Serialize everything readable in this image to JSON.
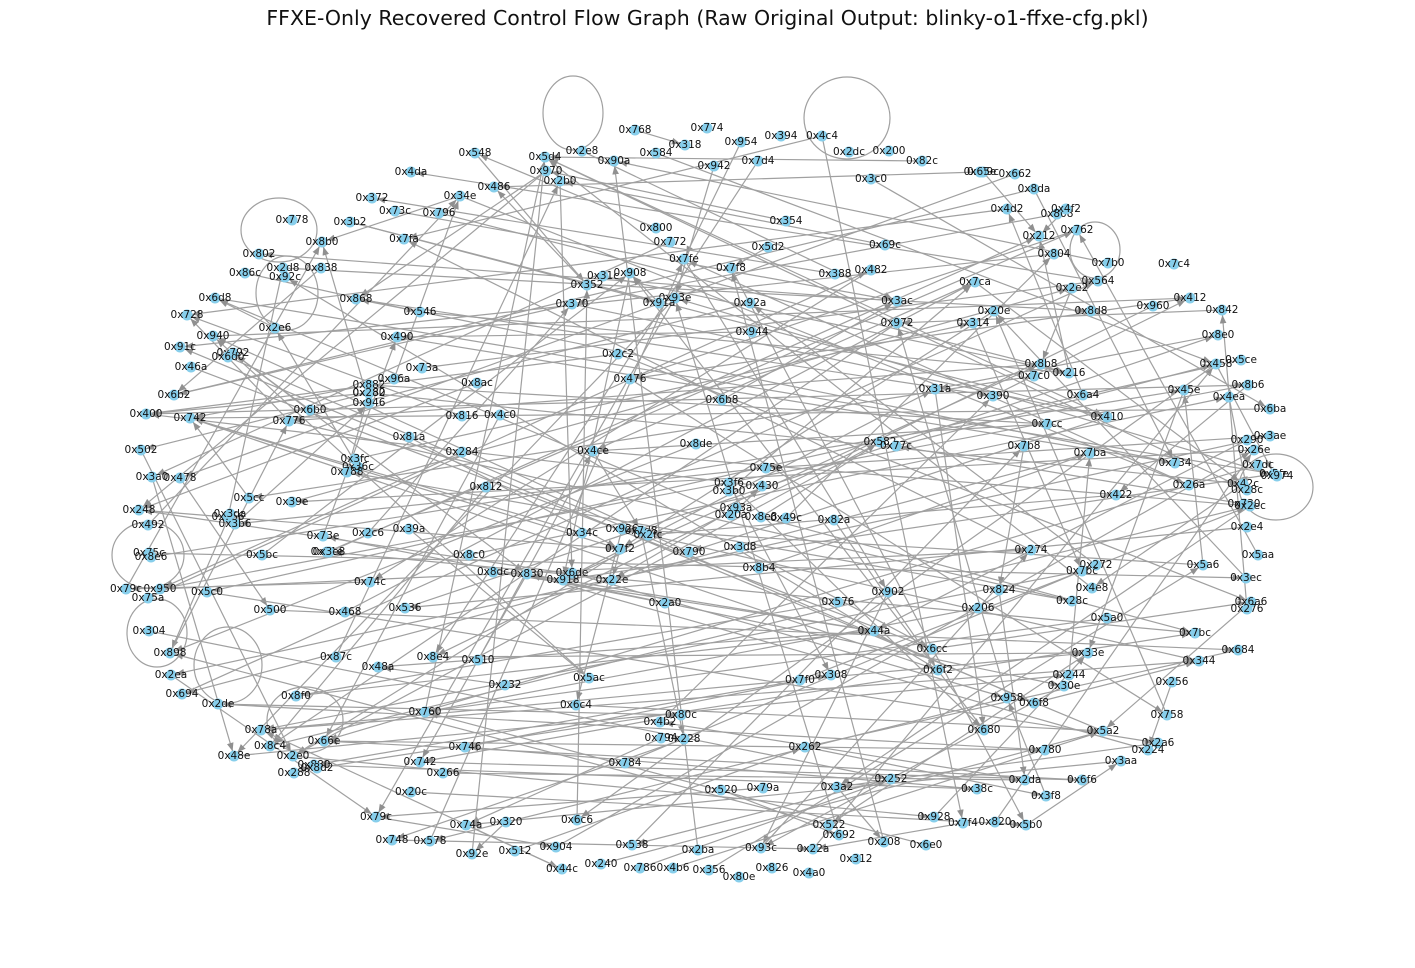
{
  "title": "FFXE-Only Recovered Control Flow Graph (Raw Original Output: blinky-o1-ffxe-cfg.pkl)",
  "colors": {
    "node": "#87ceeb",
    "edge": "#a0a0a0"
  },
  "nodes": [
    "0x768",
    "0x774",
    "0x954",
    "0x394",
    "0x4c4",
    "0x2e8",
    "0x318",
    "0x7d4",
    "0x2dc",
    "0x200",
    "0x548",
    "0x90a",
    "0x584",
    "0x942",
    "0x82c",
    "0x4da",
    "0x970",
    "0x5d4",
    "0x3c0",
    "0x69c",
    "0x65e",
    "0x662",
    "0x2b0",
    "0x486",
    "0x8da",
    "0x372",
    "0x73c",
    "0x34e",
    "0x796",
    "0x4d2",
    "0x808",
    "0x4f2",
    "0x778",
    "0x3b2",
    "0x800",
    "0x354",
    "0x8b0",
    "0x7fa",
    "0x772",
    "0x5d2",
    "0x69c2",
    "0x212",
    "0x762",
    "0x802",
    "0x2d8",
    "0x92c",
    "0x838",
    "0x7fe",
    "0x7f8",
    "0x804",
    "0x86c",
    "0x31c",
    "0x908",
    "0x388",
    "0x482",
    "0x2e2",
    "0x7ca",
    "0x564",
    "0x7b0",
    "0x7c4",
    "0x352",
    "0x868",
    "0x93e",
    "0x6d8",
    "0x546",
    "0x370",
    "0x91a",
    "0x92a",
    "0x3ac",
    "0x412",
    "0x960",
    "0x728",
    "0x20e",
    "0x8d8",
    "0x842",
    "0x314",
    "0x972",
    "0x2e6",
    "0x940",
    "0x944",
    "0x8e0",
    "0x490",
    "0x91c",
    "0x792",
    "0x6d0",
    "0x2c2",
    "0x5ce",
    "0x458",
    "0x8b8",
    "0x7c0",
    "0x46a",
    "0x73a",
    "0x216",
    "0x476",
    "0x882",
    "0x96a",
    "0x8ac",
    "0x8b6",
    "0x862",
    "0x6b2",
    "0x280",
    "0x946",
    "0x31a",
    "0x390",
    "0x45e",
    "0x4ea",
    "0x6a4",
    "0x6b8",
    "0x6ba",
    "0x6b0",
    "0x400",
    "0x742",
    "0x776",
    "0x410",
    "0x816",
    "0x4c0",
    "0x81a",
    "0x7cc",
    "0x3ae",
    "0x290",
    "0x26e",
    "0x7dc",
    "0x36c",
    "0x3fc",
    "0x582",
    "0x77c",
    "0x7b8",
    "0x8de",
    "0x502",
    "0x284",
    "0x4ce",
    "0x7ba",
    "0x734",
    "0x42c",
    "0x5fe",
    "0x974",
    "0x3a0",
    "0x478",
    "0x788",
    "0x812",
    "0x75e",
    "0x3f6",
    "0x430",
    "0x3b0",
    "0x26a",
    "0x28c",
    "0x422",
    "0x5cc",
    "0x93a",
    "0x20a",
    "0x8e8",
    "0x49c",
    "0x730",
    "0x2ec",
    "0x39e",
    "0x2e4",
    "0x248",
    "0x766",
    "0x3da",
    "0x82a",
    "0x492",
    "0x3b6",
    "0x926",
    "0x7d8",
    "0x39a",
    "0x2c6",
    "0x73e",
    "0x34c",
    "0x2fc",
    "0x81e",
    "0x75c",
    "0x8e6",
    "0x5bc",
    "0x7f2",
    "0x3e8",
    "0x8c0",
    "0x790",
    "0x3d8",
    "0x274",
    "0x272",
    "0x7bc2",
    "0x5a6",
    "0x5aa",
    "0x8dc",
    "0x830",
    "0x6de",
    "0x8b4",
    "0x3ec",
    "0x79c",
    "0x950",
    "0x75a",
    "0x5c0",
    "0x74c",
    "0x918",
    "0x22e",
    "0x4e8",
    "0x6a6",
    "0x500",
    "0x468",
    "0x536",
    "0x2a0",
    "0x576",
    "0x902",
    "0x206",
    "0x824",
    "0x28c2",
    "0x5a0",
    "0x276",
    "0x304",
    "0x898",
    "0x44a",
    "0x6cc",
    "0x7bc",
    "0x684",
    "0x87c",
    "0x48a",
    "0x8e4",
    "0x510",
    "0x33e",
    "0x344",
    "0x6f2",
    "0x2ea",
    "0x694",
    "0x2de",
    "0x7f0",
    "0x308",
    "0x244",
    "0x30e",
    "0x232",
    "0x5ac",
    "0x256",
    "0x8f0",
    "0x958",
    "0x6f8",
    "0x760",
    "0x6c4",
    "0x4b2",
    "0x80c",
    "0x758",
    "0x794",
    "0x228",
    "0x5a2",
    "0x2a6",
    "0x78a",
    "0x8c4",
    "0x66e",
    "0x746",
    "0x262",
    "0x680",
    "0x224",
    "0x48e",
    "0x2e0",
    "0x880",
    "0x742b",
    "0x8d2",
    "0x266",
    "0x784",
    "0x780",
    "0x3aa",
    "0x6f6",
    "0x288",
    "0x252",
    "0x2da",
    "0x20c",
    "0x520",
    "0x79a",
    "0x3a2",
    "0x38c",
    "0x3f8",
    "0x79c2",
    "0x74a",
    "0x320",
    "0x6c6",
    "0x928",
    "0x7f4",
    "0x820",
    "0x5b0",
    "0x522",
    "0x692",
    "0x748",
    "0x578",
    "0x92e",
    "0x512",
    "0x904",
    "0x538",
    "0x2ba",
    "0x93c",
    "0x22a",
    "0x208",
    "0x6e0",
    "0x44c",
    "0x240",
    "0x786",
    "0x4b6",
    "0x356",
    "0x826",
    "0x312",
    "0x80e",
    "0x4a0"
  ]
}
